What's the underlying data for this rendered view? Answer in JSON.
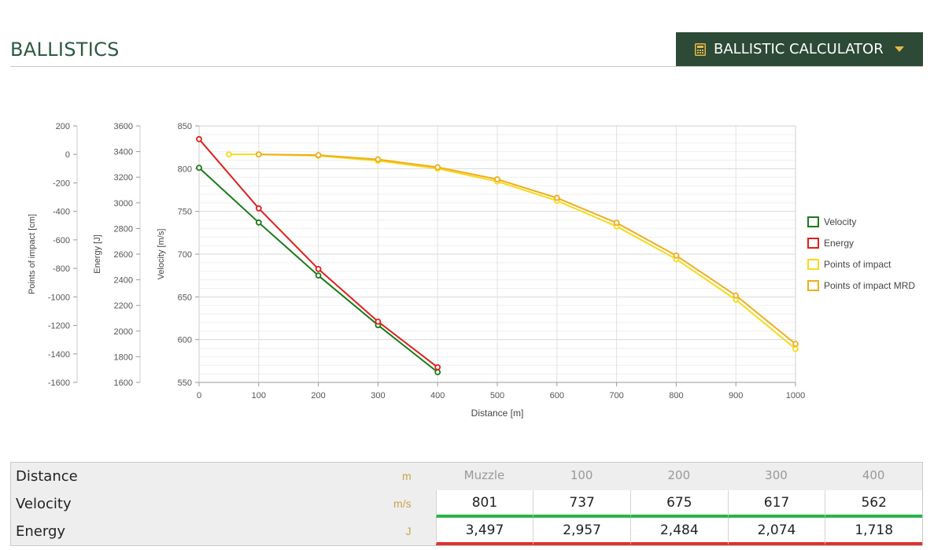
{
  "header": {
    "title": "BALLISTICS",
    "calc_button_label": "BALLISTIC CALCULATOR"
  },
  "chart_data": {
    "type": "line",
    "xlabel": "Distance [m]",
    "x_ticks": [
      0,
      100,
      200,
      300,
      400,
      500,
      600,
      700,
      800,
      900,
      1000
    ],
    "xlim": [
      0,
      1000
    ],
    "axes": [
      {
        "id": "poi",
        "label": "Points of impact [cm]",
        "ylim": [
          -1600,
          200
        ],
        "ticks": [
          200,
          0,
          -200,
          -400,
          -600,
          -800,
          -1000,
          -1200,
          -1400,
          -1600
        ]
      },
      {
        "id": "energy",
        "label": "Energy [J]",
        "ylim": [
          1600,
          3600
        ],
        "ticks": [
          3600,
          3400,
          3200,
          3000,
          2800,
          2600,
          2400,
          2200,
          2000,
          1800,
          1600
        ]
      },
      {
        "id": "velocity",
        "label": "Velocity [m/s]",
        "ylim": [
          550,
          850
        ],
        "ticks": [
          850,
          800,
          750,
          700,
          650,
          600,
          550
        ]
      }
    ],
    "grid": true,
    "legend_position": "right",
    "series": [
      {
        "name": "Velocity",
        "axis": "velocity",
        "color": "#1a7a1a",
        "x": [
          0,
          100,
          200,
          300,
          400
        ],
        "y": [
          801,
          737,
          675,
          617,
          562
        ]
      },
      {
        "name": "Energy",
        "axis": "energy",
        "color": "#e0201c",
        "x": [
          0,
          100,
          200,
          300,
          400
        ],
        "y": [
          3497,
          2957,
          2484,
          2074,
          1718
        ]
      },
      {
        "name": "Points of impact",
        "axis": "poi",
        "color": "#f4dc1c",
        "x": [
          50,
          100,
          200,
          300,
          400,
          500,
          600,
          700,
          800,
          900,
          1000
        ],
        "y": [
          0,
          0,
          -10,
          -45,
          -100,
          -190,
          -325,
          -505,
          -735,
          -1020,
          -1365
        ]
      },
      {
        "name": "Points of impact MRD",
        "axis": "poi",
        "color": "#f0ad1c",
        "x": [
          100,
          200,
          300,
          400,
          500,
          600,
          700,
          800,
          900,
          1000
        ],
        "y": [
          0,
          -5,
          -35,
          -90,
          -175,
          -305,
          -480,
          -710,
          -990,
          -1330
        ]
      }
    ]
  },
  "table": {
    "rows": [
      {
        "label": "Distance",
        "unit": "m",
        "values": [
          "Muzzle",
          "100",
          "200",
          "300",
          "400"
        ]
      },
      {
        "label": "Velocity",
        "unit": "m/s",
        "values": [
          "801",
          "737",
          "675",
          "617",
          "562"
        ]
      },
      {
        "label": "Energy",
        "unit": "J",
        "values": [
          "3,497",
          "2,957",
          "2,484",
          "2,074",
          "1,718"
        ]
      }
    ]
  }
}
